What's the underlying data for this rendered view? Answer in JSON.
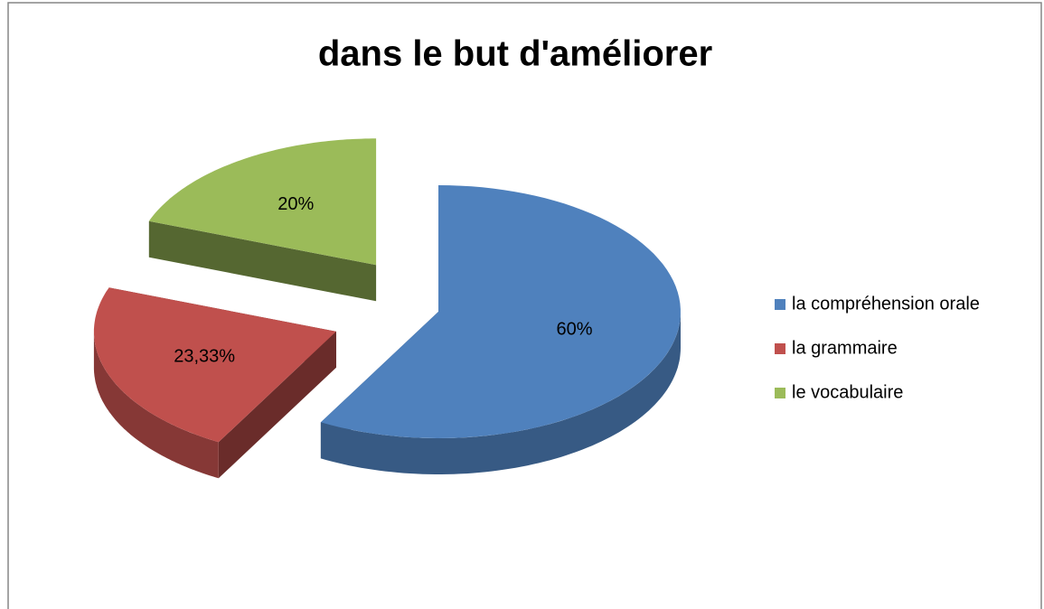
{
  "chart_data": {
    "type": "pie3d",
    "title": "dans le but d'améliorer",
    "categories": [
      "la compréhension orale",
      "la grammaire",
      "le vocabulaire"
    ],
    "values": [
      60,
      23.33,
      20
    ],
    "value_labels": [
      "60%",
      "23,33%",
      "20%"
    ],
    "colors": [
      "#4f81bd",
      "#c0504d",
      "#9bbb59"
    ],
    "legend": "right"
  }
}
